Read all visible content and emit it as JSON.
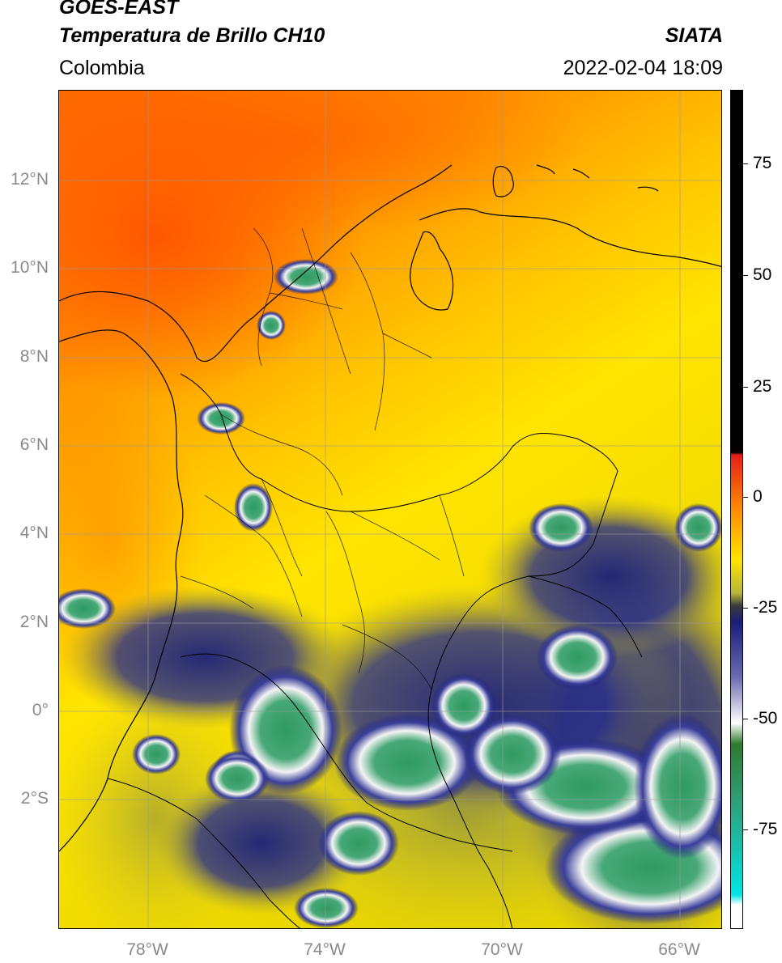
{
  "header": {
    "title_line1": "GOES-EAST",
    "title_line2": "Temperatura de Brillo CH10",
    "region": "Colombia",
    "brand": "SIATA",
    "datetime": "2022-02-04 18:09"
  },
  "map": {
    "lat_labels": [
      "12°N",
      "10°N",
      "8°N",
      "6°N",
      "4°N",
      "2°N",
      "0°",
      "2°S"
    ],
    "lon_labels": [
      "78°W",
      "74°W",
      "70°W",
      "66°W"
    ],
    "palette": {
      "warm_red": "#ff5a00",
      "orange": "#ff9a00",
      "yellow": "#ffe400",
      "olive": "#b8b030",
      "navy": "#1a1f7a",
      "white": "#f2f2f2",
      "green": "#2e9a60",
      "border": "#000000"
    }
  },
  "colorbar": {
    "labels": [
      "75",
      "50",
      "25",
      "0",
      "-25",
      "-50",
      "-75"
    ],
    "gradient": [
      "#000000",
      "#e61c1c",
      "#ff8c00",
      "#ffe400",
      "#b5b53a",
      "#3a3a3a",
      "#1a1f7a",
      "#6a6ab0",
      "#ffffff",
      "#2e7a30",
      "#2ea07a",
      "#00e5e5",
      "#ffffff"
    ]
  }
}
